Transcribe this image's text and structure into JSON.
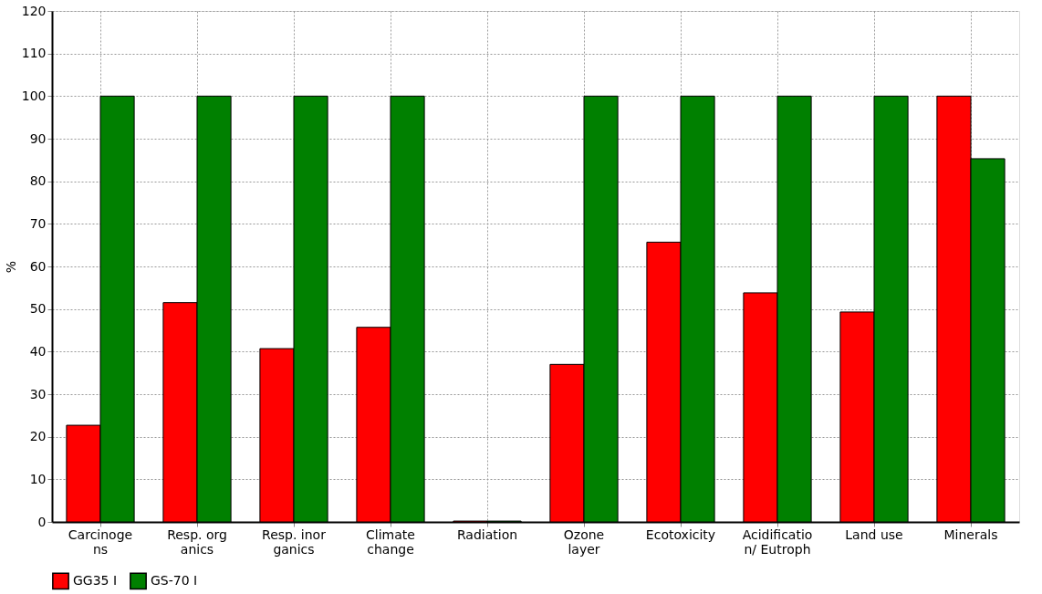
{
  "chart_data": {
    "type": "bar",
    "ylabel": "%",
    "categories": [
      "Carcinoge\nns",
      "Resp. org\nanics",
      "Resp. inor\nganics",
      "Climate\nchange",
      "Radiation",
      "Ozone\nlayer",
      "Ecotoxicity",
      "Acidificatio\nn/ Eutroph",
      "Land use",
      "Minerals"
    ],
    "series": [
      {
        "name": "GG35 I",
        "color": "#ff0000",
        "values": [
          22.7,
          51.5,
          40.7,
          45.7,
          0.2,
          37.0,
          65.7,
          53.8,
          49.3,
          100
        ]
      },
      {
        "name": "GS-70 I",
        "color": "#008000",
        "values": [
          100,
          100,
          100,
          100,
          0.2,
          100,
          100,
          100,
          100,
          85.3
        ]
      }
    ],
    "ylim": [
      0,
      120
    ],
    "yticks": [
      0,
      10,
      20,
      30,
      40,
      50,
      60,
      70,
      80,
      90,
      100,
      110,
      120
    ],
    "grid": true,
    "legend": "bottom"
  }
}
